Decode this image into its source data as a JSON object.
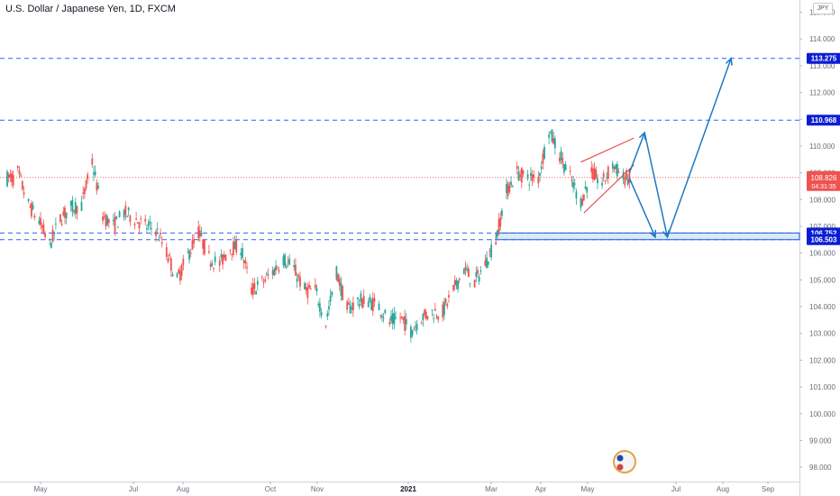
{
  "header": {
    "title": "U.S. Dollar / Japanese Yen, 1D, FXCM",
    "currency_badge": "JPY"
  },
  "colors": {
    "up": "#26a69a",
    "down": "#ef5350",
    "level_line": "#2962ff",
    "level_label_bg": "#0b1dd4",
    "price_label_bg": "#ef5350",
    "arrow": "#1e78c8",
    "channel": "#e53935",
    "zone_fill": "#dbe8f8",
    "zone_border": "#1565c0"
  },
  "chart_data": {
    "type": "candlestick",
    "y_axis": {
      "ticks": [
        98.0,
        99.0,
        100.0,
        101.0,
        102.0,
        103.0,
        104.0,
        105.0,
        106.0,
        107.0,
        108.0,
        109.0,
        110.0,
        111.0,
        112.0,
        113.0,
        114.0,
        115.0
      ],
      "range": [
        97.6,
        115.3
      ]
    },
    "x_axis": {
      "labels": [
        "May",
        "Jul",
        "Aug",
        "Oct",
        "Nov",
        "2021",
        "Mar",
        "Apr",
        "May",
        "Jul",
        "Aug",
        "Sep"
      ],
      "bold_label": "2021"
    },
    "price_path": [
      [
        "2020-04-13",
        109.0
      ],
      [
        "2020-04-20",
        107.8
      ],
      [
        "2020-04-27",
        107.2
      ],
      [
        "2020-05-04",
        106.3
      ],
      [
        "2020-05-11",
        107.3
      ],
      [
        "2020-05-18",
        107.7
      ],
      [
        "2020-05-25",
        107.8
      ],
      [
        "2020-06-01",
        109.4
      ],
      [
        "2020-06-08",
        107.4
      ],
      [
        "2020-06-15",
        107.0
      ],
      [
        "2020-06-22",
        107.5
      ],
      [
        "2020-06-29",
        107.3
      ],
      [
        "2020-07-06",
        107.0
      ],
      [
        "2020-07-13",
        106.9
      ],
      [
        "2020-07-20",
        106.0
      ],
      [
        "2020-07-27",
        105.0
      ],
      [
        "2020-08-03",
        105.9
      ],
      [
        "2020-08-10",
        106.8
      ],
      [
        "2020-08-17",
        105.8
      ],
      [
        "2020-08-24",
        105.6
      ],
      [
        "2020-08-31",
        106.2
      ],
      [
        "2020-09-07",
        106.2
      ],
      [
        "2020-09-14",
        104.6
      ],
      [
        "2020-09-21",
        104.9
      ],
      [
        "2020-09-28",
        105.3
      ],
      [
        "2020-10-05",
        105.8
      ],
      [
        "2020-10-12",
        105.4
      ],
      [
        "2020-10-19",
        104.6
      ],
      [
        "2020-10-26",
        104.6
      ],
      [
        "2020-11-02",
        103.4
      ],
      [
        "2020-11-09",
        105.3
      ],
      [
        "2020-11-16",
        103.9
      ],
      [
        "2020-11-23",
        104.2
      ],
      [
        "2020-11-30",
        104.2
      ],
      [
        "2020-12-07",
        104.0
      ],
      [
        "2020-12-14",
        103.4
      ],
      [
        "2020-12-21",
        103.6
      ],
      [
        "2020-12-28",
        103.1
      ],
      [
        "2021-01-04",
        103.6
      ],
      [
        "2021-01-11",
        103.8
      ],
      [
        "2021-01-18",
        103.8
      ],
      [
        "2021-01-25",
        104.6
      ],
      [
        "2021-02-01",
        105.4
      ],
      [
        "2021-02-08",
        104.9
      ],
      [
        "2021-02-15",
        105.6
      ],
      [
        "2021-02-22",
        106.5
      ],
      [
        "2021-03-01",
        108.3
      ],
      [
        "2021-03-08",
        109.0
      ],
      [
        "2021-03-15",
        108.8
      ],
      [
        "2021-03-22",
        108.8
      ],
      [
        "2021-03-29",
        110.6
      ],
      [
        "2021-04-05",
        109.7
      ],
      [
        "2021-04-12",
        108.8
      ],
      [
        "2021-04-19",
        107.9
      ],
      [
        "2021-04-26",
        109.0
      ],
      [
        "2021-05-03",
        108.6
      ],
      [
        "2021-05-10",
        109.3
      ],
      [
        "2021-05-17",
        108.8
      ],
      [
        "2021-05-21",
        108.8
      ]
    ],
    "horizontal_levels": [
      {
        "label": "113.275",
        "value": 113.275
      },
      {
        "label": "110.968",
        "value": 110.968
      },
      {
        "label": "106.752",
        "value": 106.752
      },
      {
        "label": "106.503",
        "value": 106.503
      }
    ],
    "current_price": {
      "label": "108.826",
      "countdown": "04:31:35",
      "value": 108.826
    },
    "support_zone": {
      "from": 106.503,
      "to": 106.752,
      "start_date": "2021-02-22"
    },
    "channel": {
      "upper": [
        [
          "2021-04-19",
          109.4
        ],
        [
          "2021-05-24",
          110.3
        ]
      ],
      "lower": [
        [
          "2021-04-21",
          107.5
        ],
        [
          "2021-05-24",
          109.3
        ]
      ]
    },
    "projection_arrows": [
      [
        [
          "2021-05-21",
          109.0
        ],
        [
          "2021-05-31",
          110.5
        ]
      ],
      [
        [
          "2021-05-31",
          110.5
        ],
        [
          "2021-06-15",
          106.6
        ]
      ],
      [
        [
          "2021-05-21",
          108.8
        ],
        [
          "2021-06-07",
          106.6
        ]
      ],
      [
        [
          "2021-06-15",
          106.6
        ],
        [
          "2021-07-27",
          113.275
        ]
      ]
    ]
  }
}
